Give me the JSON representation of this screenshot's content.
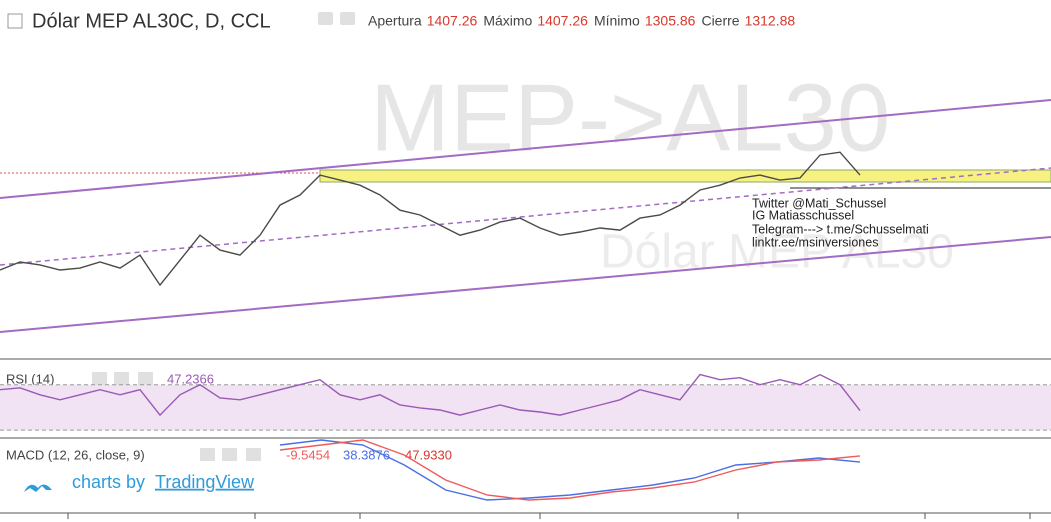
{
  "header": {
    "title": "Dólar MEP AL30C, D, CCL",
    "ohlc": [
      {
        "name": "Apertura",
        "value": 1407.26
      },
      {
        "name": "Máximo",
        "value": 1407.26
      },
      {
        "name": "Mínimo",
        "value": 1305.86
      },
      {
        "name": "Cierre",
        "value": 1312.88
      }
    ]
  },
  "watermark": [
    "MEP->AL30",
    "Dólar MEP AL30"
  ],
  "annotation": [
    "Twitter @Mati_Schussel",
    "IG Matiasschussel",
    "Telegram--->  t.me/Schusselmati",
    "linktr.ee/msinversiones"
  ],
  "rsi_header": {
    "label": "RSI (14)",
    "value": 47.2366
  },
  "macd_header": {
    "label": "MACD (12, 26, close, 9)",
    "values": [
      -9.5454,
      38.3876,
      {
        "value": 47.933,
        "label": "47.9330"
      }
    ]
  },
  "branding": {
    "prefix": "charts by",
    "name": "TradingView"
  },
  "chart_data": [
    {
      "type": "line",
      "ylim": [
        625,
        1821
      ],
      "series": [
        {
          "name": "Dólar MEP AL30C",
          "color": "#4a4a4a",
          "values": [
            956,
            986,
            975,
            956,
            963,
            986,
            963,
            1012,
            899,
            993,
            1087,
            1031,
            1012,
            1087,
            1200,
            1238,
            1313,
            1294,
            1275,
            1238,
            1181,
            1163,
            1125,
            1087,
            1106,
            1136,
            1151,
            1114,
            1087,
            1099,
            1114,
            1106,
            1151,
            1163,
            1200,
            1257,
            1275,
            1302,
            1313,
            1294,
            1302,
            1388,
            1399,
            1312.88
          ]
        }
      ]
    },
    {
      "type": "line",
      "ylim": [
        24,
        90
      ],
      "band": [
        30,
        70
      ],
      "band_color": "#f1e3f3",
      "series": [
        {
          "name": "RSI",
          "color": "#9b59b6",
          "values": [
            65.6,
            67.3,
            61.1,
            56.7,
            61.1,
            65.6,
            61.1,
            65.6,
            43.3,
            61.1,
            70,
            58.4,
            56.7,
            61.1,
            65.6,
            70,
            74.4,
            61.1,
            56.7,
            61.1,
            52.2,
            49.6,
            47.8,
            43.3,
            47.8,
            52.2,
            47.8,
            46,
            43.3,
            47.8,
            52.2,
            56.7,
            65.6,
            61.1,
            56.7,
            78.9,
            74.4,
            76.2,
            70,
            74.4,
            70,
            78.9,
            70,
            47.2366
          ]
        }
      ]
    },
    {
      "type": "line",
      "ylim": [
        -38.5,
        72.4
      ],
      "series": [
        {
          "name": "MACD",
          "color": "#4a6fe3",
          "values": [
            64.7,
            72.4,
            64.7,
            33.9,
            -4.6,
            -20,
            -16.9,
            -12.3,
            -4.6,
            3.1,
            13.9,
            33.9,
            38.5,
            44.7,
            38.3876
          ]
        },
        {
          "name": "Signal",
          "color": "#f05a5a",
          "values": [
            57,
            64.7,
            72.4,
            49.3,
            10.8,
            -12.3,
            -20,
            -16.9,
            -7.7,
            -1.5,
            7.7,
            26.2,
            38.5,
            41.6,
            47.933
          ]
        }
      ]
    }
  ]
}
